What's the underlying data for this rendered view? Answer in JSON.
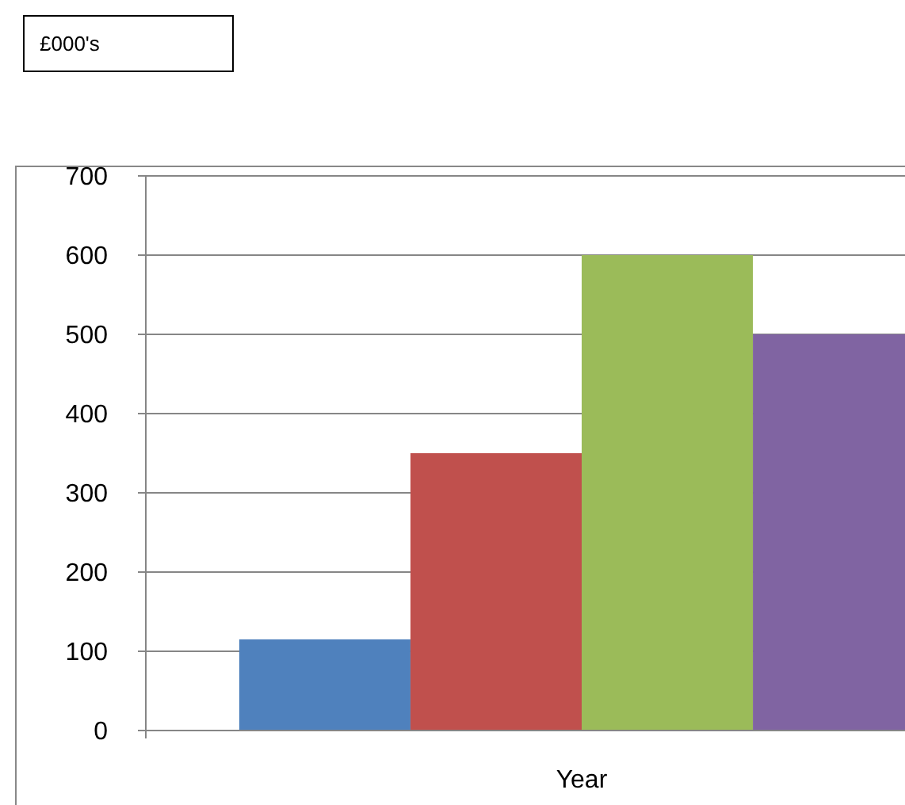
{
  "chart_data": {
    "type": "bar",
    "annotations": [
      "£000's"
    ],
    "categories": [
      "Year"
    ],
    "series": [
      {
        "color": "#4f81bd",
        "values": [
          115
        ]
      },
      {
        "color": "#c0504d",
        "values": [
          350
        ]
      },
      {
        "color": "#9bbb59",
        "values": [
          600
        ]
      },
      {
        "color": "#8064a2",
        "values": [
          500
        ]
      }
    ],
    "ylim": [
      0,
      700
    ],
    "yticks": [
      0,
      100,
      200,
      300,
      400,
      500,
      600,
      700
    ],
    "grid": "y"
  }
}
